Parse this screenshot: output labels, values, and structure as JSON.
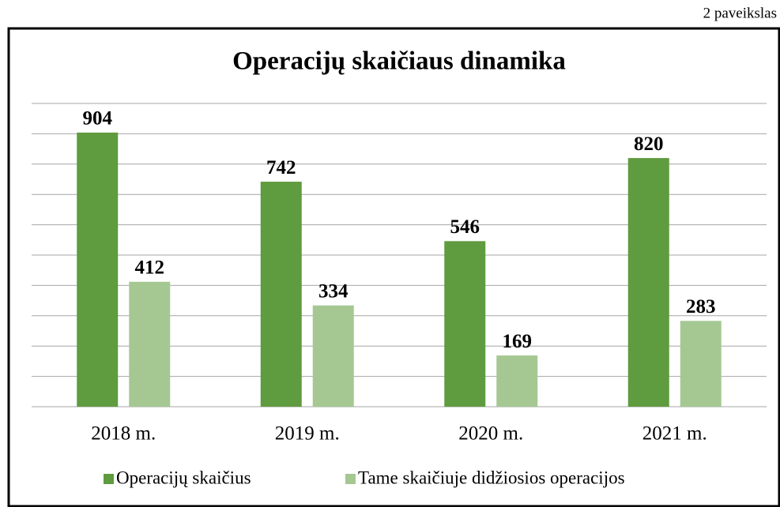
{
  "figure_label": "2 paveikslas",
  "chart_data": {
    "type": "bar",
    "title": "Operacijų skaičiaus dinamika",
    "categories": [
      "2018 m.",
      "2019 m.",
      "2020 m.",
      "2021 m."
    ],
    "series": [
      {
        "name": "Operacijų skaičius",
        "color": "#5f9b3f",
        "values": [
          904,
          742,
          546,
          820
        ]
      },
      {
        "name": "Tame skaičiuje didžiosios operacijos",
        "color": "#a5c892",
        "values": [
          412,
          334,
          169,
          283
        ]
      }
    ],
    "ylim": [
      0,
      1000
    ],
    "yticks": [
      0,
      100,
      200,
      300,
      400,
      500,
      600,
      700,
      800,
      900,
      1000
    ],
    "grid": true,
    "legend": "bottom"
  }
}
